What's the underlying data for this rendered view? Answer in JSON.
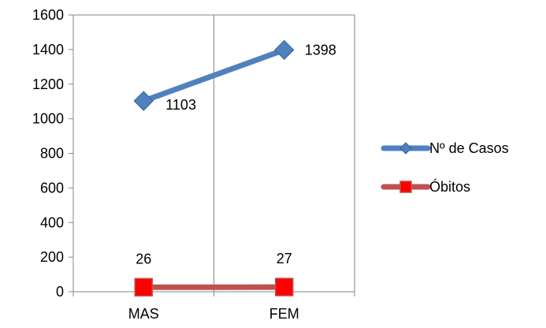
{
  "chart_data": {
    "type": "line",
    "categories": [
      "MAS",
      "FEM"
    ],
    "series": [
      {
        "name": "Nº de Casos",
        "values": [
          1103,
          1398
        ],
        "color": "#4F81BD",
        "marker": "diamond"
      },
      {
        "name": "Óbitos",
        "values": [
          26,
          27
        ],
        "color": "#C0504D",
        "marker_fill": "#FF0000",
        "marker": "square"
      }
    ],
    "y_ticks": [
      0,
      200,
      400,
      600,
      800,
      1000,
      1200,
      1400,
      1600
    ],
    "ylim": [
      0,
      1600
    ],
    "grid": "vertical",
    "legend_position": "right",
    "data_labels": true
  }
}
